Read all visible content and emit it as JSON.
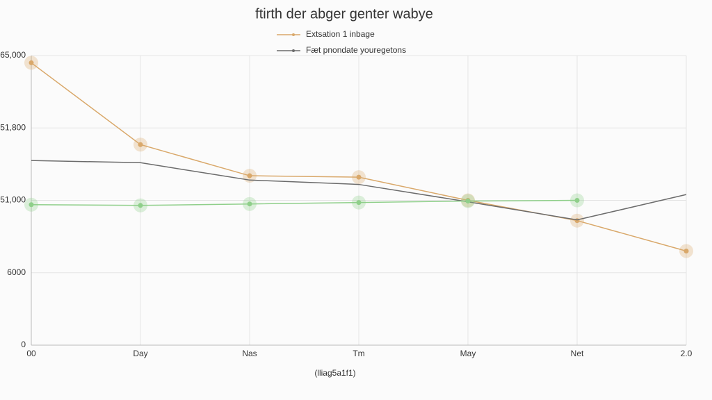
{
  "chart_data": {
    "type": "line",
    "title": "ftirth der abger genter wabye",
    "x_label": "(lliag5a1f1)",
    "categories": [
      "00",
      "Day",
      "Nas",
      "Tm",
      "May",
      "Net",
      "2.0"
    ],
    "series": [
      {
        "name": "Extsation 1 inbage",
        "color": "#d9a86a",
        "marker": true,
        "values": [
          3.9,
          2.77,
          2.34,
          2.32,
          2.0,
          1.72,
          1.3
        ]
      },
      {
        "name": "Fæt pnondate youregetons",
        "color": "#6b6b6b",
        "marker": false,
        "values": [
          2.55,
          2.52,
          2.28,
          2.22,
          1.98,
          1.73,
          2.08
        ]
      },
      {
        "color": "#8fcf8a",
        "marker": true,
        "values": [
          1.94,
          1.93,
          1.95,
          1.97,
          1.99,
          2.0,
          null
        ]
      }
    ],
    "ylim": [
      0,
      4
    ],
    "yticks": [
      0,
      {
        "value": 1,
        "label": "6000"
      },
      {
        "value": 2,
        "label": "51,000"
      },
      {
        "value": 3,
        "label": "51,800"
      },
      {
        "value": 4,
        "label": "65,000"
      }
    ],
    "grid": true
  }
}
